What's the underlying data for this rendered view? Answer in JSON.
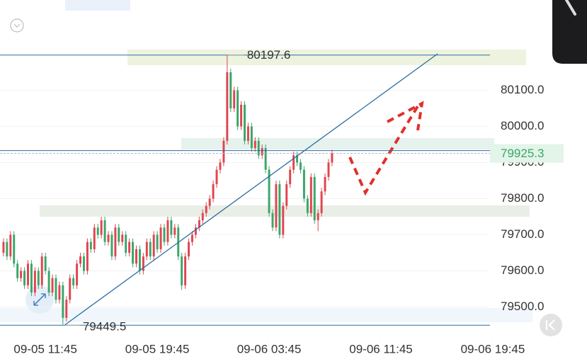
{
  "chart_data": {
    "type": "candlestick",
    "up_color": "#e0454f",
    "down_color": "#3aa66a",
    "line_color": "#2b6ca3",
    "xlim": [
      -1,
      155
    ],
    "ylim": [
      79400,
      80350
    ],
    "xticks": [
      {
        "value": 12,
        "label": "09-05 11:45"
      },
      {
        "value": 44,
        "label": "09-05 19:45"
      },
      {
        "value": 76,
        "label": "09-06 03:45"
      },
      {
        "value": 108,
        "label": "09-06 11:45"
      },
      {
        "value": 140,
        "label": "09-06 19:45"
      }
    ],
    "yticks": [
      {
        "value": 79500,
        "label": "79500.0"
      },
      {
        "value": 79600,
        "label": "79600.0"
      },
      {
        "value": 79700,
        "label": "79700.0"
      },
      {
        "value": 79800,
        "label": "79800.0"
      },
      {
        "value": 79900,
        "label": "79900.0"
      },
      {
        "value": 80000,
        "label": "80000.0"
      },
      {
        "value": 80100,
        "label": "80100.0"
      }
    ],
    "open": [
      79650,
      79680,
      79640,
      79700,
      79620,
      79580,
      79600,
      79560,
      79620,
      79540,
      79600,
      79560,
      79640,
      79600,
      79540,
      79580,
      79520,
      79560,
      79470,
      79520,
      79580,
      79560,
      79620,
      79640,
      79600,
      79680,
      79660,
      79720,
      79700,
      79740,
      79680,
      79700,
      79640,
      79720,
      79680,
      79700,
      79650,
      79680,
      79620,
      79660,
      79600,
      79640,
      79680,
      79640,
      79700,
      79660,
      79720,
      79680,
      79740,
      79700,
      79720,
      79640,
      79560,
      79640,
      79680,
      79700,
      79720,
      79740,
      79760,
      79780,
      79800,
      79840,
      79880,
      79900,
      79960,
      80150,
      80050,
      80100,
      80000,
      80060,
      79960,
      80000,
      79940,
      79960,
      79920,
      79940,
      79880,
      79760,
      79720,
      79840,
      79700,
      79780,
      79840,
      79880,
      79920,
      79900,
      79880,
      79800,
      79760,
      79860,
      79740,
      79760,
      79820,
      79860,
      79900
    ],
    "high": [
      79690,
      79690,
      79710,
      79710,
      79630,
      79610,
      79610,
      79630,
      79630,
      79610,
      79610,
      79650,
      79650,
      79610,
      79590,
      79590,
      79570,
      79570,
      79530,
      79590,
      79590,
      79630,
      79650,
      79650,
      79690,
      79690,
      79730,
      79730,
      79750,
      79750,
      79710,
      79710,
      79730,
      79730,
      79710,
      79710,
      79690,
      79690,
      79670,
      79670,
      79650,
      79690,
      79690,
      79710,
      79710,
      79730,
      79730,
      79750,
      79750,
      79730,
      79730,
      79650,
      79650,
      79690,
      79710,
      79730,
      79750,
      79770,
      79790,
      79810,
      79850,
      79890,
      79910,
      79970,
      80197.6,
      80160,
      80110,
      80110,
      80070,
      80070,
      80010,
      80010,
      79970,
      79970,
      79950,
      79950,
      79890,
      79770,
      79850,
      79850,
      79790,
      79850,
      79890,
      79930,
      79930,
      79910,
      79890,
      79810,
      79870,
      79870,
      79770,
      79830,
      79870,
      79910,
      79935
    ],
    "low": [
      79640,
      79630,
      79630,
      79610,
      79570,
      79570,
      79550,
      79550,
      79530,
      79530,
      79550,
      79550,
      79590,
      79530,
      79530,
      79510,
      79510,
      79449.5,
      79460,
      79510,
      79550,
      79550,
      79610,
      79590,
      79590,
      79650,
      79650,
      79690,
      79690,
      79670,
      79670,
      79630,
      79630,
      79670,
      79670,
      79640,
      79640,
      79610,
      79610,
      79590,
      79590,
      79630,
      79630,
      79630,
      79650,
      79650,
      79670,
      79670,
      79690,
      79690,
      79630,
      79547,
      79550,
      79630,
      79670,
      79690,
      79710,
      79730,
      79750,
      79770,
      79790,
      79830,
      79870,
      79890,
      79950,
      80040,
      80040,
      79990,
      79990,
      79950,
      79950,
      79930,
      79930,
      79910,
      79910,
      79870,
      79750,
      79710,
      79710,
      79690,
      79690,
      79770,
      79830,
      79870,
      79890,
      79870,
      79790,
      79750,
      79750,
      79730,
      79710,
      79750,
      79810,
      79850,
      79890
    ],
    "close": [
      79680,
      79640,
      79700,
      79620,
      79580,
      79600,
      79560,
      79620,
      79540,
      79600,
      79560,
      79640,
      79600,
      79540,
      79580,
      79520,
      79560,
      79470,
      79520,
      79580,
      79560,
      79620,
      79640,
      79600,
      79680,
      79660,
      79720,
      79700,
      79740,
      79680,
      79700,
      79640,
      79720,
      79680,
      79700,
      79650,
      79680,
      79620,
      79660,
      79600,
      79640,
      79680,
      79640,
      79700,
      79660,
      79720,
      79680,
      79740,
      79700,
      79720,
      79640,
      79560,
      79640,
      79680,
      79700,
      79720,
      79740,
      79760,
      79780,
      79800,
      79840,
      79880,
      79900,
      79960,
      80150,
      80050,
      80100,
      80000,
      80060,
      79960,
      80000,
      79940,
      79960,
      79920,
      79940,
      79880,
      79760,
      79720,
      79840,
      79700,
      79780,
      79840,
      79880,
      79920,
      79900,
      79880,
      79800,
      79760,
      79860,
      79740,
      79760,
      79820,
      79860,
      79900,
      79925.3
    ]
  }
}
